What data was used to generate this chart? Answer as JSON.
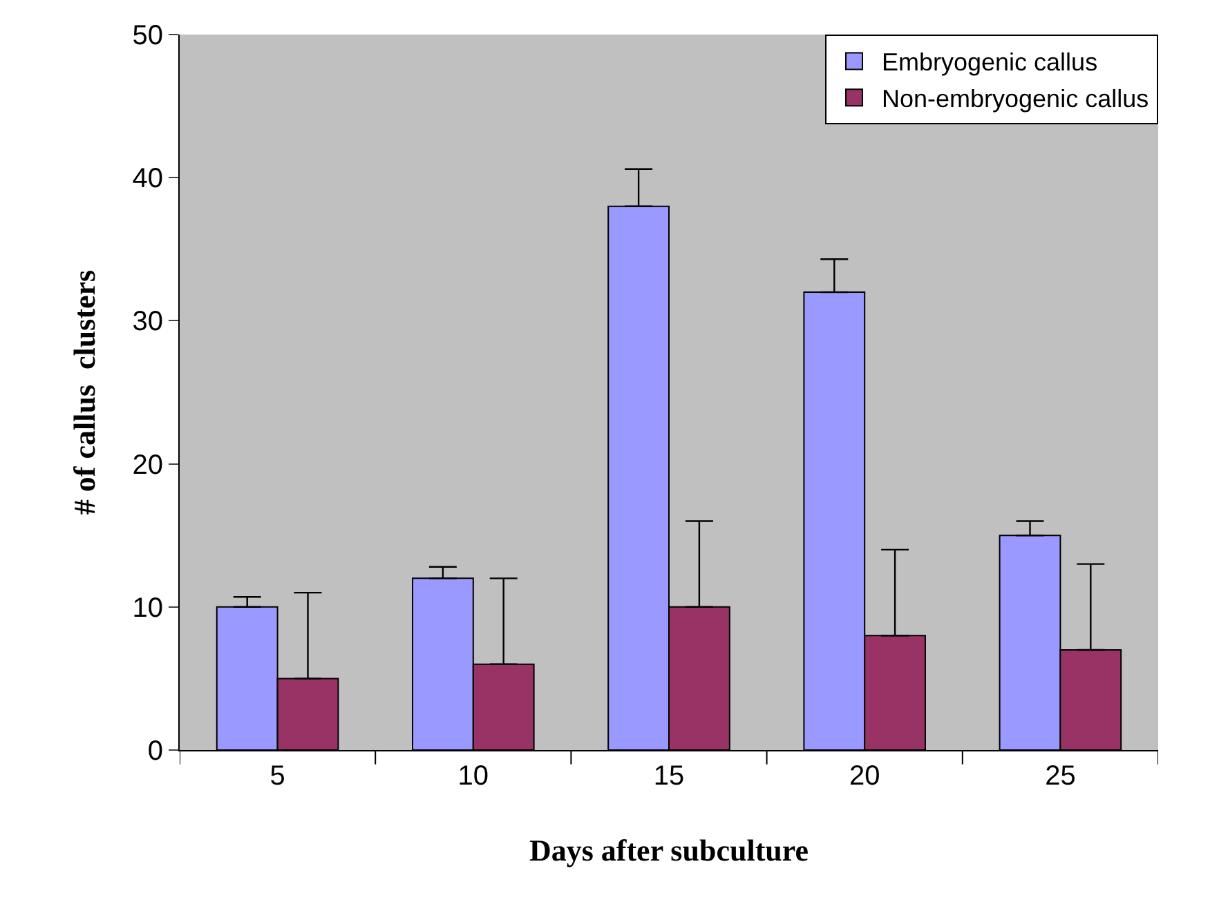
{
  "chart_data": {
    "type": "bar",
    "xlabel": "Days after subculture",
    "ylabel": "# of callus  clusters",
    "categories": [
      "5",
      "10",
      "15",
      "20",
      "25"
    ],
    "series": [
      {
        "name": "Embryogenic callus",
        "color": "#9999ff",
        "values": [
          10,
          12,
          38,
          32,
          15
        ],
        "errors": [
          [
            10,
            10.7
          ],
          [
            12,
            12.8
          ],
          [
            38,
            40.6
          ],
          [
            32,
            34.3
          ],
          [
            15,
            16
          ]
        ]
      },
      {
        "name": "Non-embryogenic callus",
        "color": "#993366",
        "values": [
          5,
          6,
          10,
          8,
          7
        ],
        "errors": [
          [
            5,
            11
          ],
          [
            6,
            12
          ],
          [
            10,
            16
          ],
          [
            8,
            14
          ],
          [
            7,
            13
          ]
        ]
      }
    ],
    "ylim": [
      0,
      50
    ],
    "yticks": [
      0,
      10,
      20,
      30,
      40,
      50
    ],
    "grid": false,
    "legend": "top right"
  }
}
